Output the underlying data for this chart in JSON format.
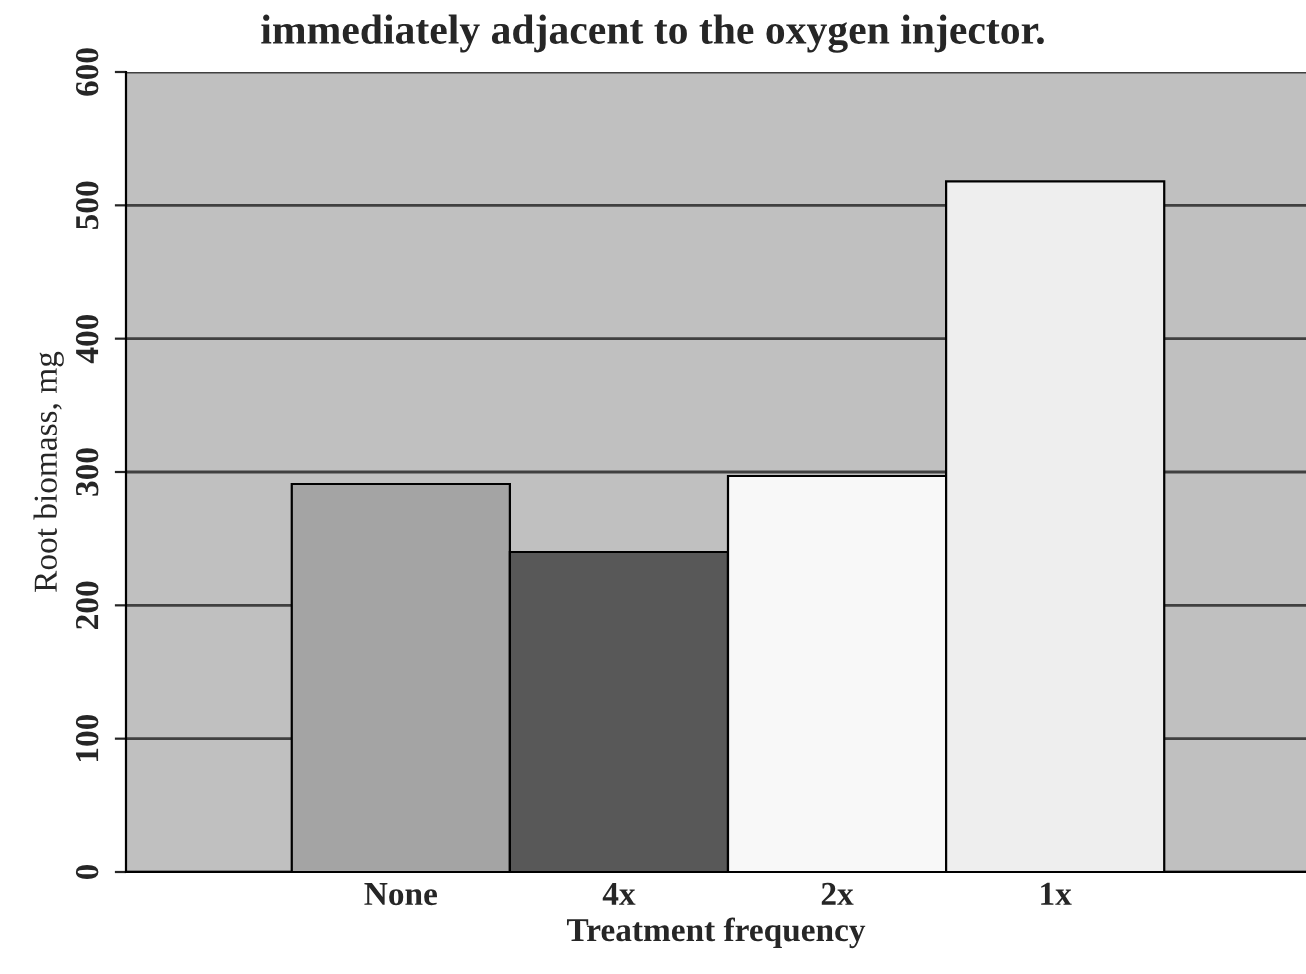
{
  "chart_data": {
    "type": "bar",
    "title": "immediately adjacent to the oxygen injector.",
    "xlabel": "Treatment frequency",
    "ylabel": "Root biomass, mg",
    "categories": [
      "None",
      "4x",
      "2x",
      "1x"
    ],
    "values": [
      291,
      240,
      297,
      518
    ],
    "colors": [
      "#a4a4a4",
      "#585858",
      "#f8f8f8",
      "#eeeeee"
    ],
    "ylim": [
      0,
      600
    ],
    "yticks": [
      0,
      100,
      200,
      300,
      400,
      500,
      600
    ],
    "grid": "y",
    "legend": false
  }
}
